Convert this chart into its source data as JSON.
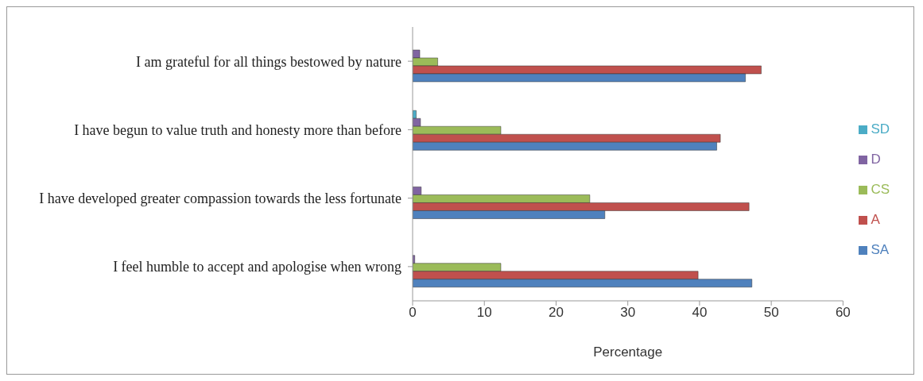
{
  "chart_data": {
    "type": "bar",
    "orientation": "horizontal",
    "categories": [
      "I am grateful for all things bestowed by nature",
      "I have begun to value truth and honesty more than before",
      "I have developed greater compassion towards the less fortunate",
      "I feel humble to accept and apologise when wrong"
    ],
    "series": [
      {
        "name": "SD",
        "color": "#4bacc6",
        "values": [
          null,
          0.5,
          null,
          null
        ]
      },
      {
        "name": "D",
        "color": "#8064a2",
        "values": [
          1,
          1.1,
          1.2,
          0.3
        ]
      },
      {
        "name": "CS",
        "color": "#9bbb59",
        "values": [
          3.5,
          12.3,
          24.7,
          12.3
        ]
      },
      {
        "name": "A",
        "color": "#c0504d",
        "values": [
          48.6,
          42.9,
          46.9,
          39.8
        ]
      },
      {
        "name": "SA",
        "color": "#4f81bd",
        "values": [
          46.4,
          42.4,
          26.8,
          47.3
        ]
      }
    ],
    "xlabel": "Percentage",
    "xlim": [
      0,
      60
    ],
    "xticks": [
      0,
      10,
      20,
      30,
      40,
      50,
      60
    ],
    "grid": false,
    "legend": "right"
  }
}
